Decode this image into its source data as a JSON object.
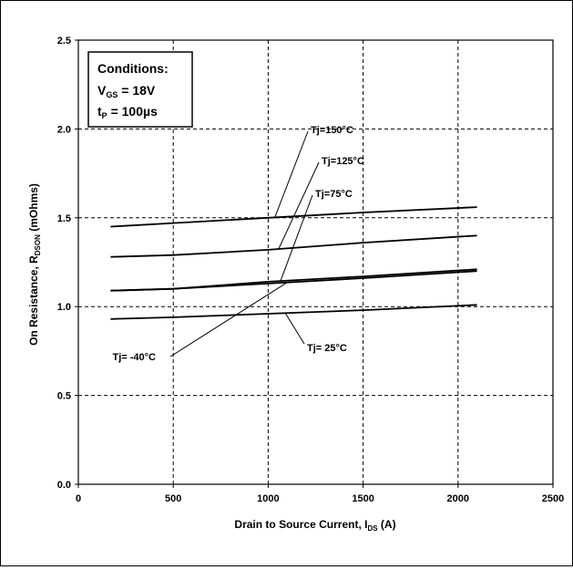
{
  "chart_data": {
    "type": "line",
    "xlabel": "Drain to Source Current, I",
    "xlabel_sub": "DS",
    "xlabel_tail": " (A)",
    "ylabel": "On Resistance, R",
    "ylabel_sub": "DSON",
    "ylabel_tail": " (mOhms)",
    "xlim": [
      0,
      2500
    ],
    "ylim": [
      0.0,
      2.5
    ],
    "x_ticks": [
      0,
      500,
      1000,
      1500,
      2000,
      2500
    ],
    "x_tick_labels": [
      "0",
      "500",
      "1000",
      "1500",
      "2000",
      "2500"
    ],
    "y_ticks": [
      0.0,
      0.5,
      1.0,
      1.5,
      2.0,
      2.5
    ],
    "y_tick_labels": [
      "0.0",
      "0.5",
      "1.0",
      "1.5",
      "2.0",
      "2.5"
    ],
    "grid": true,
    "conditions": {
      "title": "Conditions:",
      "vgs_main": "V",
      "vgs_sub": "GS",
      "vgs_tail": " = 18V",
      "tp_main": "t",
      "tp_sub": "P",
      "tp_tail": " = 100µs"
    },
    "series": [
      {
        "name": "Tj=150°C",
        "color": "#000000",
        "x": [
          170,
          500,
          1000,
          1500,
          2100
        ],
        "values": [
          1.45,
          1.47,
          1.5,
          1.53,
          1.56
        ]
      },
      {
        "name": "Tj=125°C",
        "color": "#000000",
        "x": [
          170,
          500,
          1000,
          1500,
          2100
        ],
        "values": [
          1.28,
          1.29,
          1.32,
          1.36,
          1.4
        ]
      },
      {
        "name": "Tj=75°C",
        "color": "#000000",
        "x": [
          170,
          500,
          1000,
          1500,
          2100
        ],
        "values": [
          1.09,
          1.1,
          1.14,
          1.17,
          1.21
        ]
      },
      {
        "name": "Tj= -40°C",
        "color": "#000000",
        "x": [
          170,
          500,
          1000,
          1500,
          2100
        ],
        "values": [
          1.09,
          1.1,
          1.13,
          1.16,
          1.2
        ]
      },
      {
        "name": "Tj= 25°C",
        "color": "#000000",
        "x": [
          170,
          500,
          1000,
          1500,
          2100
        ],
        "values": [
          0.93,
          0.94,
          0.96,
          0.98,
          1.01
        ]
      }
    ]
  }
}
